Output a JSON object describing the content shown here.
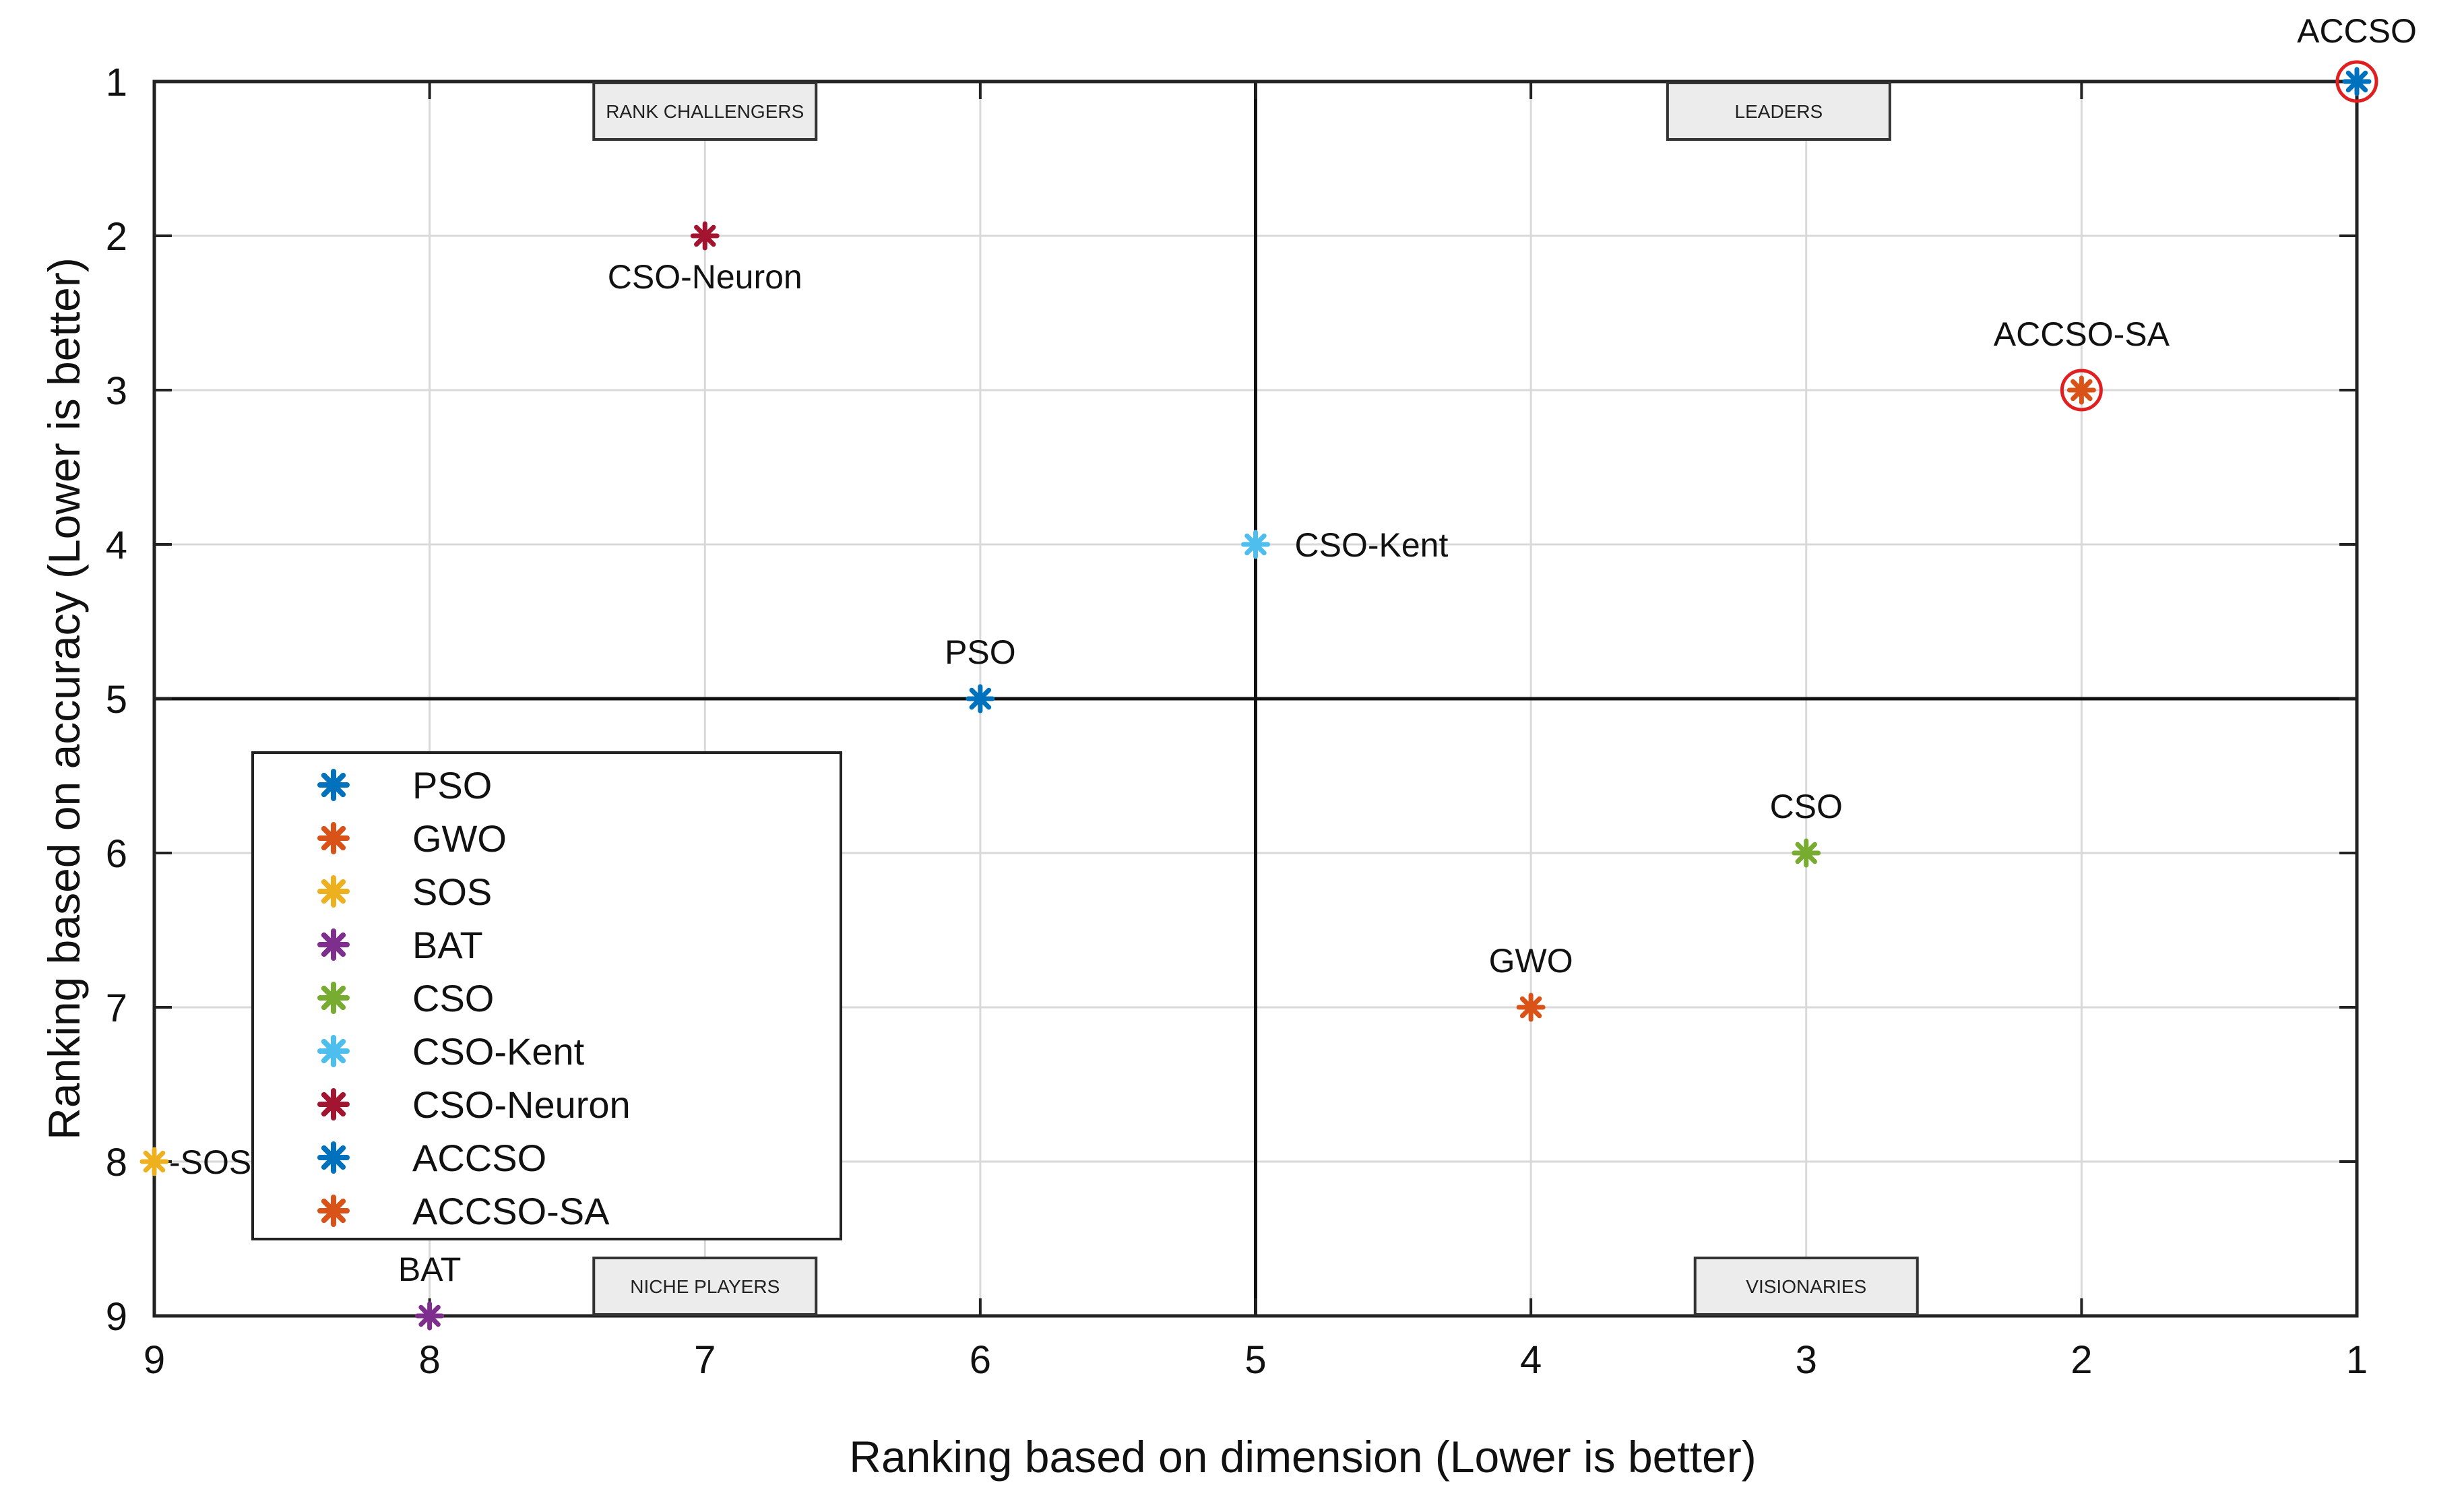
{
  "chart_data": {
    "type": "scatter",
    "title": "",
    "xlabel": "Ranking based on dimension (Lower is better)",
    "ylabel": "Ranking based on accuracy (Lower is better)",
    "xlim": [
      9,
      1
    ],
    "ylim": [
      9,
      1
    ],
    "x_reversed": true,
    "y_reversed": true,
    "xticks": [
      9,
      8,
      7,
      6,
      5,
      4,
      3,
      2,
      1
    ],
    "yticks": [
      1,
      2,
      3,
      4,
      5,
      6,
      7,
      8,
      9
    ],
    "grid": true,
    "dividers": {
      "x": 5,
      "y": 5
    },
    "quadrants": [
      {
        "name": "RANK CHALLENGERS",
        "position": "top-left"
      },
      {
        "name": "LEADERS",
        "position": "top-right"
      },
      {
        "name": "NICHE PLAYERS",
        "position": "bottom-left"
      },
      {
        "name": "VISIONARIES",
        "position": "bottom-right"
      }
    ],
    "series": [
      {
        "name": "PSO",
        "x": 6,
        "y": 5,
        "label": "PSO",
        "color": "#0072BD",
        "label_side": "above"
      },
      {
        "name": "GWO",
        "x": 4,
        "y": 7,
        "label": "GWO",
        "color": "#D95319",
        "label_side": "above"
      },
      {
        "name": "SOS",
        "x": 9,
        "y": 8,
        "label": "-SOS",
        "color": "#EDB120",
        "label_side": "right"
      },
      {
        "name": "BAT",
        "x": 8,
        "y": 9,
        "label": "BAT",
        "color": "#7E2F8E",
        "label_side": "above"
      },
      {
        "name": "CSO",
        "x": 3,
        "y": 6,
        "label": "CSO",
        "color": "#77AC30",
        "label_side": "above"
      },
      {
        "name": "CSO-Kent",
        "x": 5,
        "y": 4,
        "label": "CSO-Kent",
        "color": "#4DBEEE",
        "label_side": "right"
      },
      {
        "name": "CSO-Neuron",
        "x": 7,
        "y": 2,
        "label": "CSO-Neuron",
        "color": "#A2142F",
        "label_side": "below"
      },
      {
        "name": "ACCSO",
        "x": 1,
        "y": 1,
        "label": "ACCSO",
        "color": "#0072BD",
        "label_side": "above",
        "highlight": true
      },
      {
        "name": "ACCSO-SA",
        "x": 2,
        "y": 3,
        "label": "ACCSO-SA",
        "color": "#D95319",
        "label_side": "above",
        "highlight": true
      }
    ],
    "highlight_color": "#e02020",
    "legend": {
      "position": "bottom-left",
      "entries": [
        "PSO",
        "GWO",
        "SOS",
        "BAT",
        "CSO",
        "CSO-Kent",
        "CSO-Neuron",
        "ACCSO",
        "ACCSO-SA"
      ]
    }
  }
}
